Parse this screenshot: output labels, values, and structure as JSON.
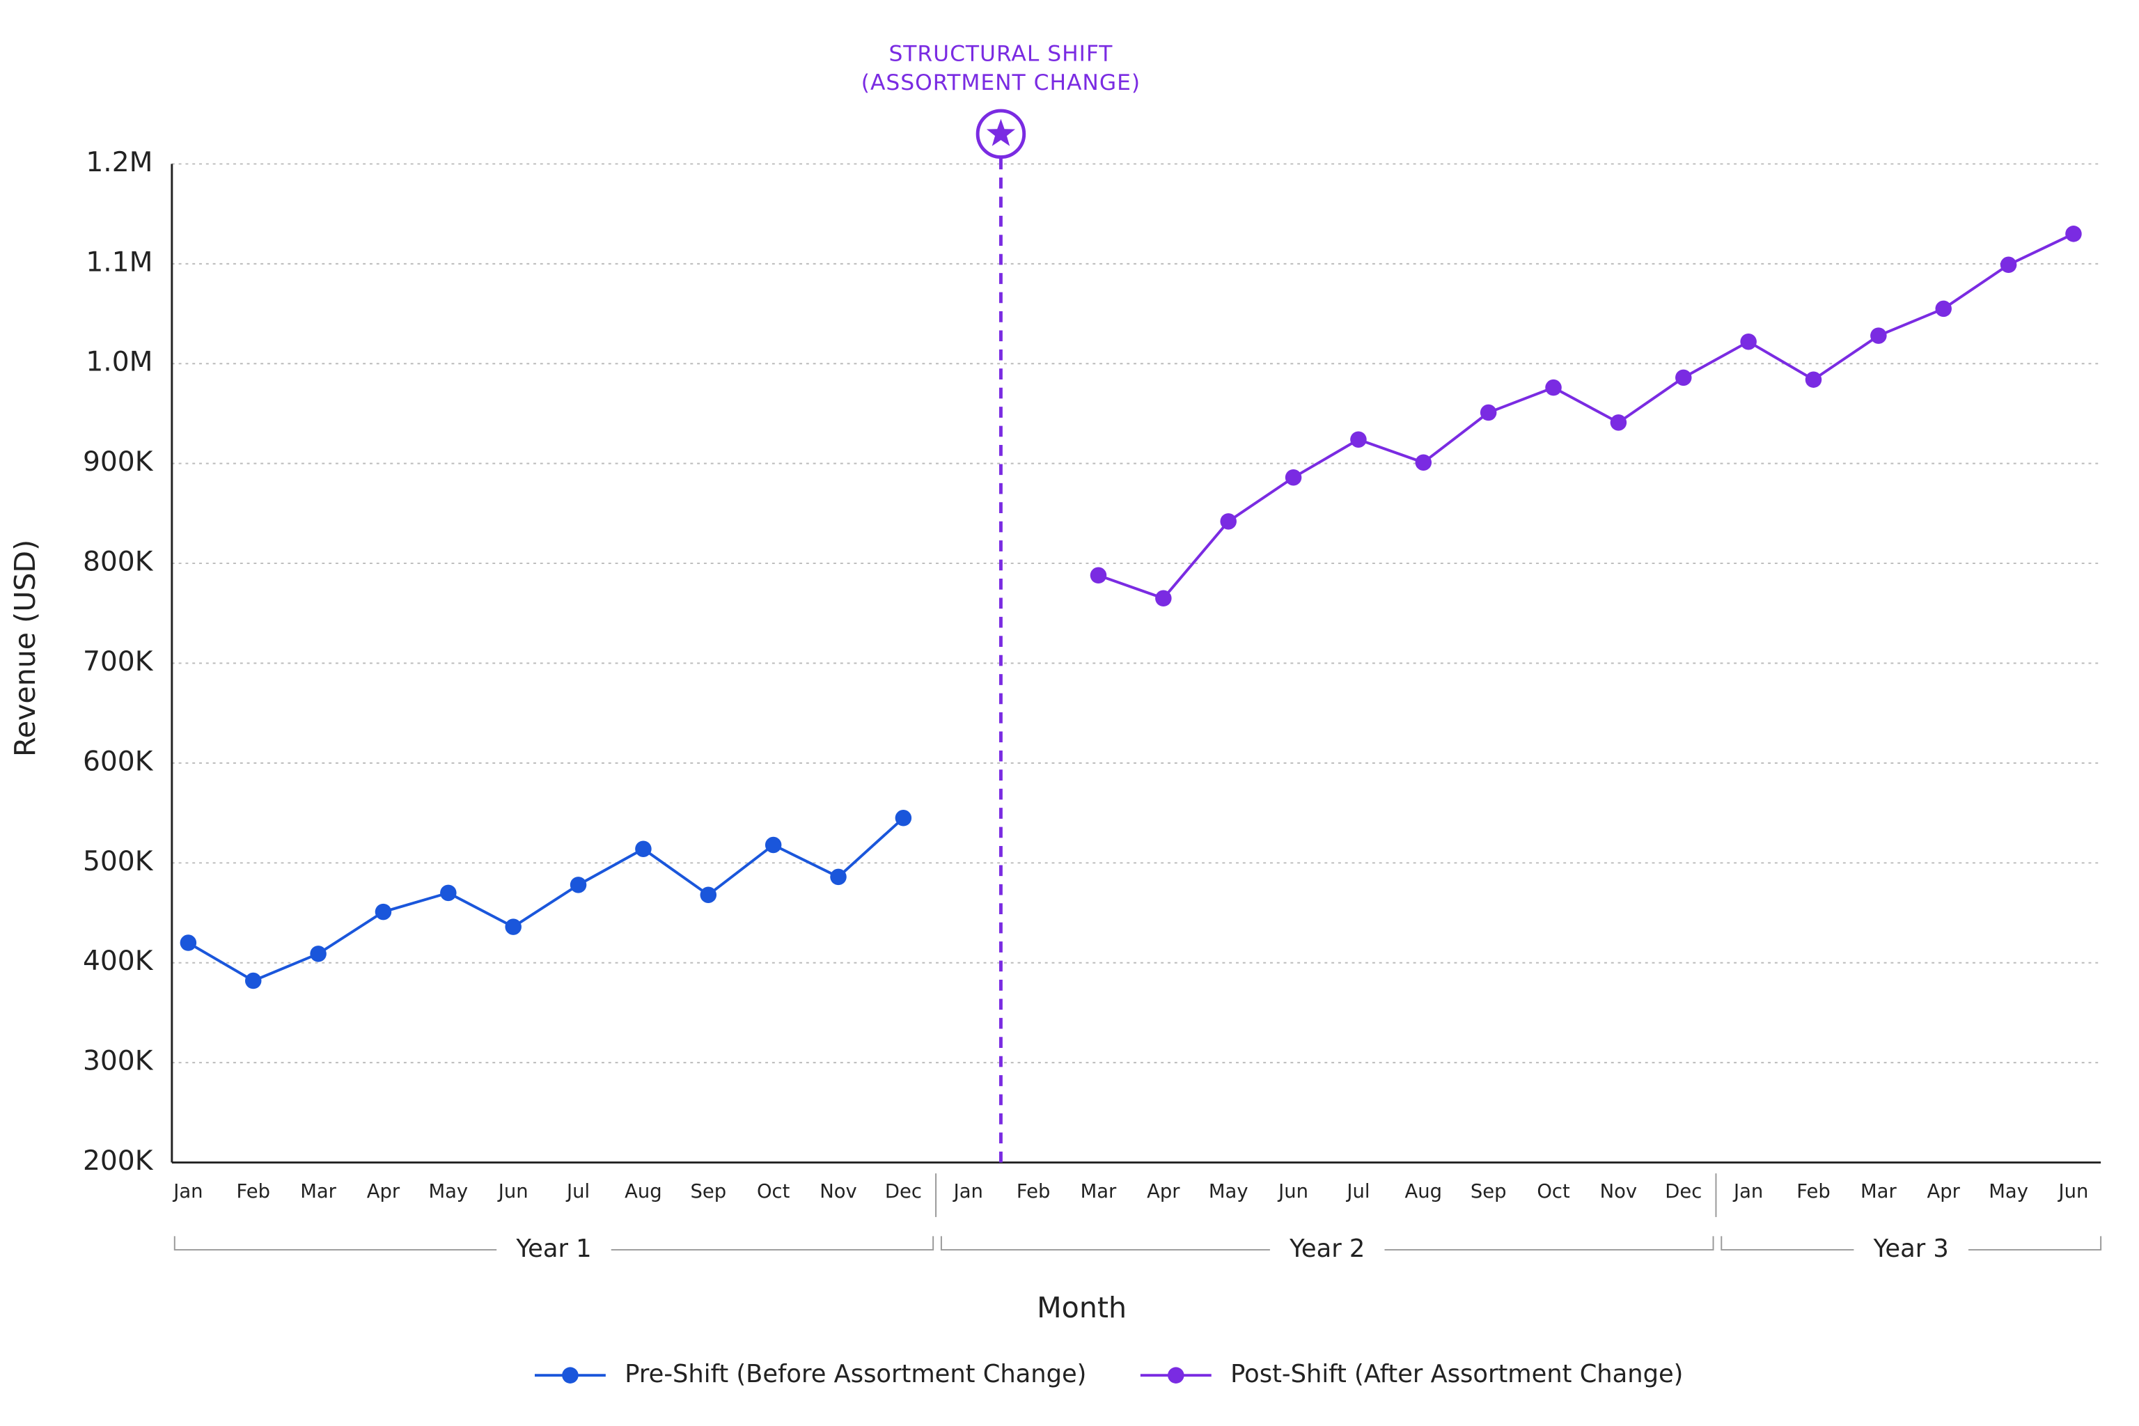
{
  "chart_data": {
    "type": "line",
    "y_label": "Revenue (USD)",
    "x_label": "Month",
    "annotation": {
      "lines": [
        "STRUCTURAL SHIFT",
        "(ASSORTMENT CHANGE)"
      ],
      "color": "#7a2be2"
    },
    "categories": [
      "Jan",
      "Feb",
      "Mar",
      "Apr",
      "May",
      "Jun",
      "Jul",
      "Aug",
      "Sep",
      "Oct",
      "Nov",
      "Dec",
      "Jan",
      "Feb",
      "Mar",
      "Apr",
      "May",
      "Jun",
      "Jul",
      "Aug",
      "Sep",
      "Oct",
      "Nov",
      "Dec",
      "Jan",
      "Feb",
      "Mar",
      "Apr",
      "May",
      "Jun"
    ],
    "groups": [
      "Year 1",
      "Year 2",
      "Year 3"
    ],
    "series": [
      {
        "name": "Pre-Shift (Before Assortment Change)",
        "color": "#1a56db",
        "values": [
          420000,
          382000,
          409000,
          451000,
          470000,
          436000,
          478000,
          514000,
          468000,
          518000,
          486000,
          545000,
          null,
          null,
          null,
          null,
          null,
          null,
          null,
          null,
          null,
          null,
          null,
          null,
          null,
          null,
          null,
          null,
          null,
          null
        ]
      },
      {
        "name": "Post-Shift (After Assortment Change)",
        "color": "#7a2be2",
        "values": [
          null,
          null,
          null,
          null,
          null,
          null,
          null,
          null,
          null,
          null,
          null,
          null,
          null,
          null,
          788000,
          765000,
          842000,
          886000,
          924000,
          901000,
          951000,
          976000,
          941000,
          986000,
          1022000,
          984000,
          1028000,
          1055000,
          1099000,
          1130000
        ]
      }
    ],
    "ylim": [
      200000,
      1200000
    ],
    "yticks": [
      {
        "value": 200000,
        "label": "200K"
      },
      {
        "value": 300000,
        "label": "300K"
      },
      {
        "value": 400000,
        "label": "400K"
      },
      {
        "value": 500000,
        "label": "500K"
      },
      {
        "value": 600000,
        "label": "600K"
      },
      {
        "value": 700000,
        "label": "700K"
      },
      {
        "value": 800000,
        "label": "800K"
      },
      {
        "value": 900000,
        "label": "900K"
      },
      {
        "value": 1000000,
        "label": "1.0M"
      },
      {
        "value": 1100000,
        "label": "1.1M"
      },
      {
        "value": 1200000,
        "label": "1.2M"
      }
    ],
    "grid": true,
    "legend": "bottom"
  }
}
